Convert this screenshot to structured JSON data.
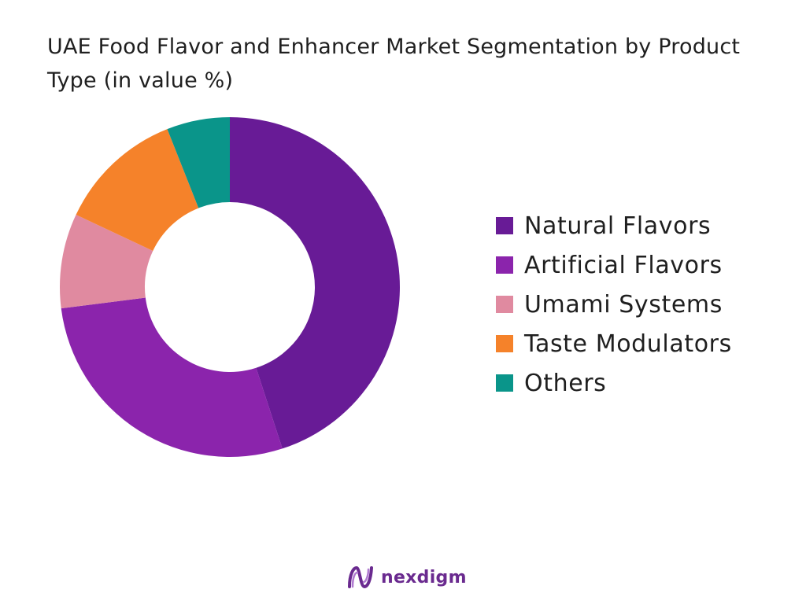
{
  "chart_data": {
    "type": "pie",
    "subtype": "donut",
    "title": "UAE Food Flavor and Enhancer Market Segmentation by Product Type (in value %)",
    "categories": [
      "Natural Flavors",
      "Artificial Flavors",
      "Umami Systems",
      "Taste Modulators",
      "Others"
    ],
    "values": [
      45,
      28,
      9,
      12,
      6
    ],
    "colors": [
      "#681b96",
      "#8b24ac",
      "#e08aa0",
      "#f5822a",
      "#0a958a"
    ],
    "legend_position": "right",
    "start_angle": "top",
    "direction": "clockwise"
  },
  "brand": {
    "name": "nexdigm",
    "logo_icon": "nexdigm-logo-icon",
    "color": "#6a2a8f"
  }
}
